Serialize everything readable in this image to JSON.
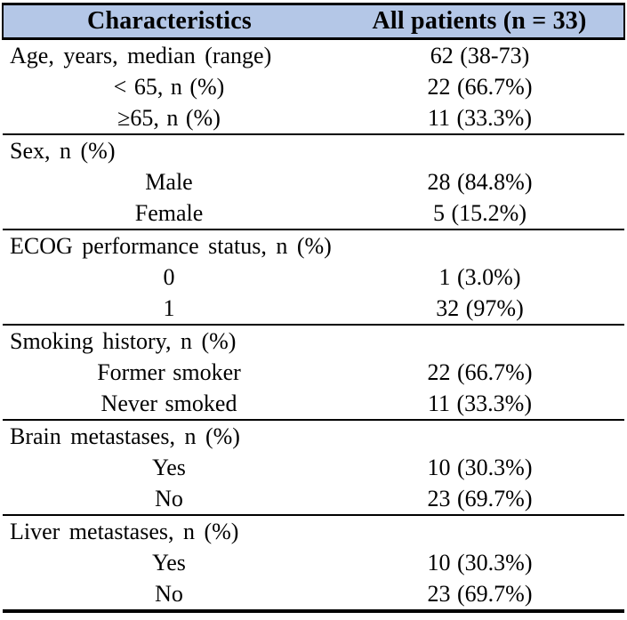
{
  "page": {
    "background_color": "#ffffff",
    "text_color": "#000000",
    "rule_color": "#000000"
  },
  "table": {
    "header": {
      "characteristics_label": "Characteristics",
      "all_patients_label": "All patients (n = 33)",
      "background_color": "#b4c7e7"
    },
    "rows": [
      {
        "label": "Age, years, median (range)",
        "value": "62 (38-73)",
        "type": "section"
      },
      {
        "label": "< 65, n (%)",
        "value": "22 (66.7%)",
        "type": "sub"
      },
      {
        "label": "≥65, n (%)",
        "value": "11 (33.3%)",
        "type": "sub"
      },
      {
        "label": "Sex, n (%)",
        "value": "",
        "type": "section"
      },
      {
        "label": "Male",
        "value": "28 (84.8%)",
        "type": "sub"
      },
      {
        "label": "Female",
        "value": "5 (15.2%)",
        "type": "sub"
      },
      {
        "label": "ECOG performance status, n (%)",
        "value": "",
        "type": "section"
      },
      {
        "label": "0",
        "value": "1 (3.0%)",
        "type": "sub"
      },
      {
        "label": "1",
        "value": "32 (97%)",
        "type": "sub"
      },
      {
        "label": "Smoking history, n (%)",
        "value": "",
        "type": "section"
      },
      {
        "label": "Former smoker",
        "value": "22 (66.7%)",
        "type": "sub"
      },
      {
        "label": "Never smoked",
        "value": "11 (33.3%)",
        "type": "sub"
      },
      {
        "label": "Brain metastases, n (%)",
        "value": "",
        "type": "section"
      },
      {
        "label": "Yes",
        "value": "10 (30.3%)",
        "type": "sub"
      },
      {
        "label": "No",
        "value": "23 (69.7%)",
        "type": "sub"
      },
      {
        "label": "Liver metastases, n (%)",
        "value": "",
        "type": "section"
      },
      {
        "label": "Yes",
        "value": "10 (30.3%)",
        "type": "sub"
      },
      {
        "label": "No",
        "value": "23 (69.7%)",
        "type": "sub"
      }
    ]
  }
}
